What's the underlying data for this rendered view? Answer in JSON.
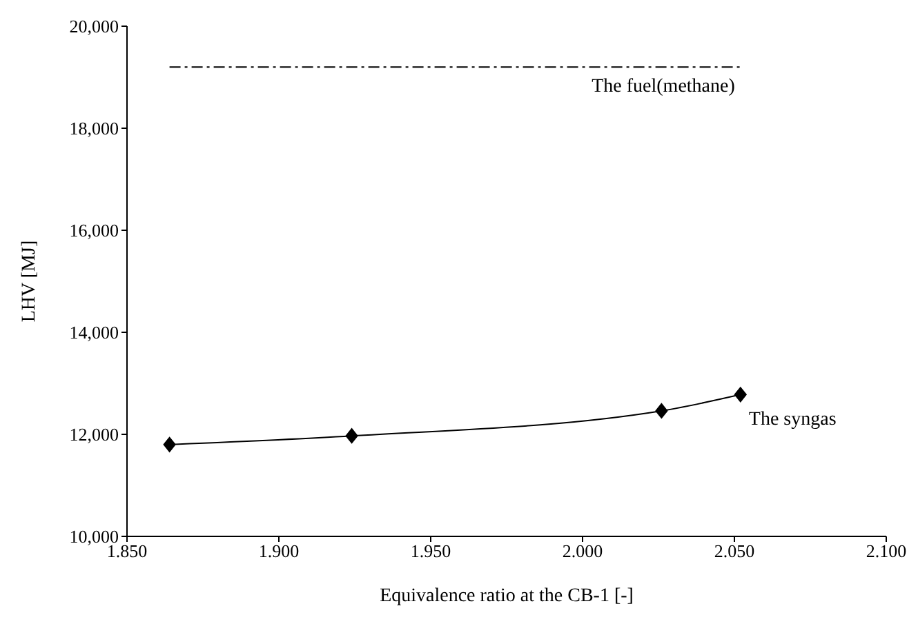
{
  "chart_data": {
    "type": "line",
    "xlabel": "Equivalence ratio at the CB-1 [-]",
    "ylabel": "LHV [MJ]",
    "xlim": [
      1.85,
      2.1
    ],
    "xticks": [
      {
        "value": 1.85,
        "label": "1.850"
      },
      {
        "value": 1.9,
        "label": "1.900"
      },
      {
        "value": 1.95,
        "label": "1.950"
      },
      {
        "value": 2.0,
        "label": "2.000"
      },
      {
        "value": 2.05,
        "label": "2.050"
      },
      {
        "value": 2.1,
        "label": "2.100"
      }
    ],
    "ylim": [
      10000,
      20000
    ],
    "yticks": [
      {
        "value": 10000,
        "label": "10,000"
      },
      {
        "value": 12000,
        "label": "12,000"
      },
      {
        "value": 14000,
        "label": "14,000"
      },
      {
        "value": 16000,
        "label": "16,000"
      },
      {
        "value": 18000,
        "label": "18,000"
      },
      {
        "value": 20000,
        "label": "20,000"
      }
    ],
    "grid": false,
    "legend": false,
    "series": [
      {
        "name": "The fuel(methane)",
        "color": "#000000",
        "x": [
          1.864,
          2.052
        ],
        "values": [
          19200,
          19200
        ],
        "marker": "none",
        "line_style": "dashdot"
      },
      {
        "name": "The syngas",
        "color": "#000000",
        "x": [
          1.864,
          1.924,
          2.026,
          2.052
        ],
        "values": [
          11800,
          11970,
          12460,
          12780
        ],
        "marker": "diamond",
        "line_style": "solid"
      }
    ]
  }
}
